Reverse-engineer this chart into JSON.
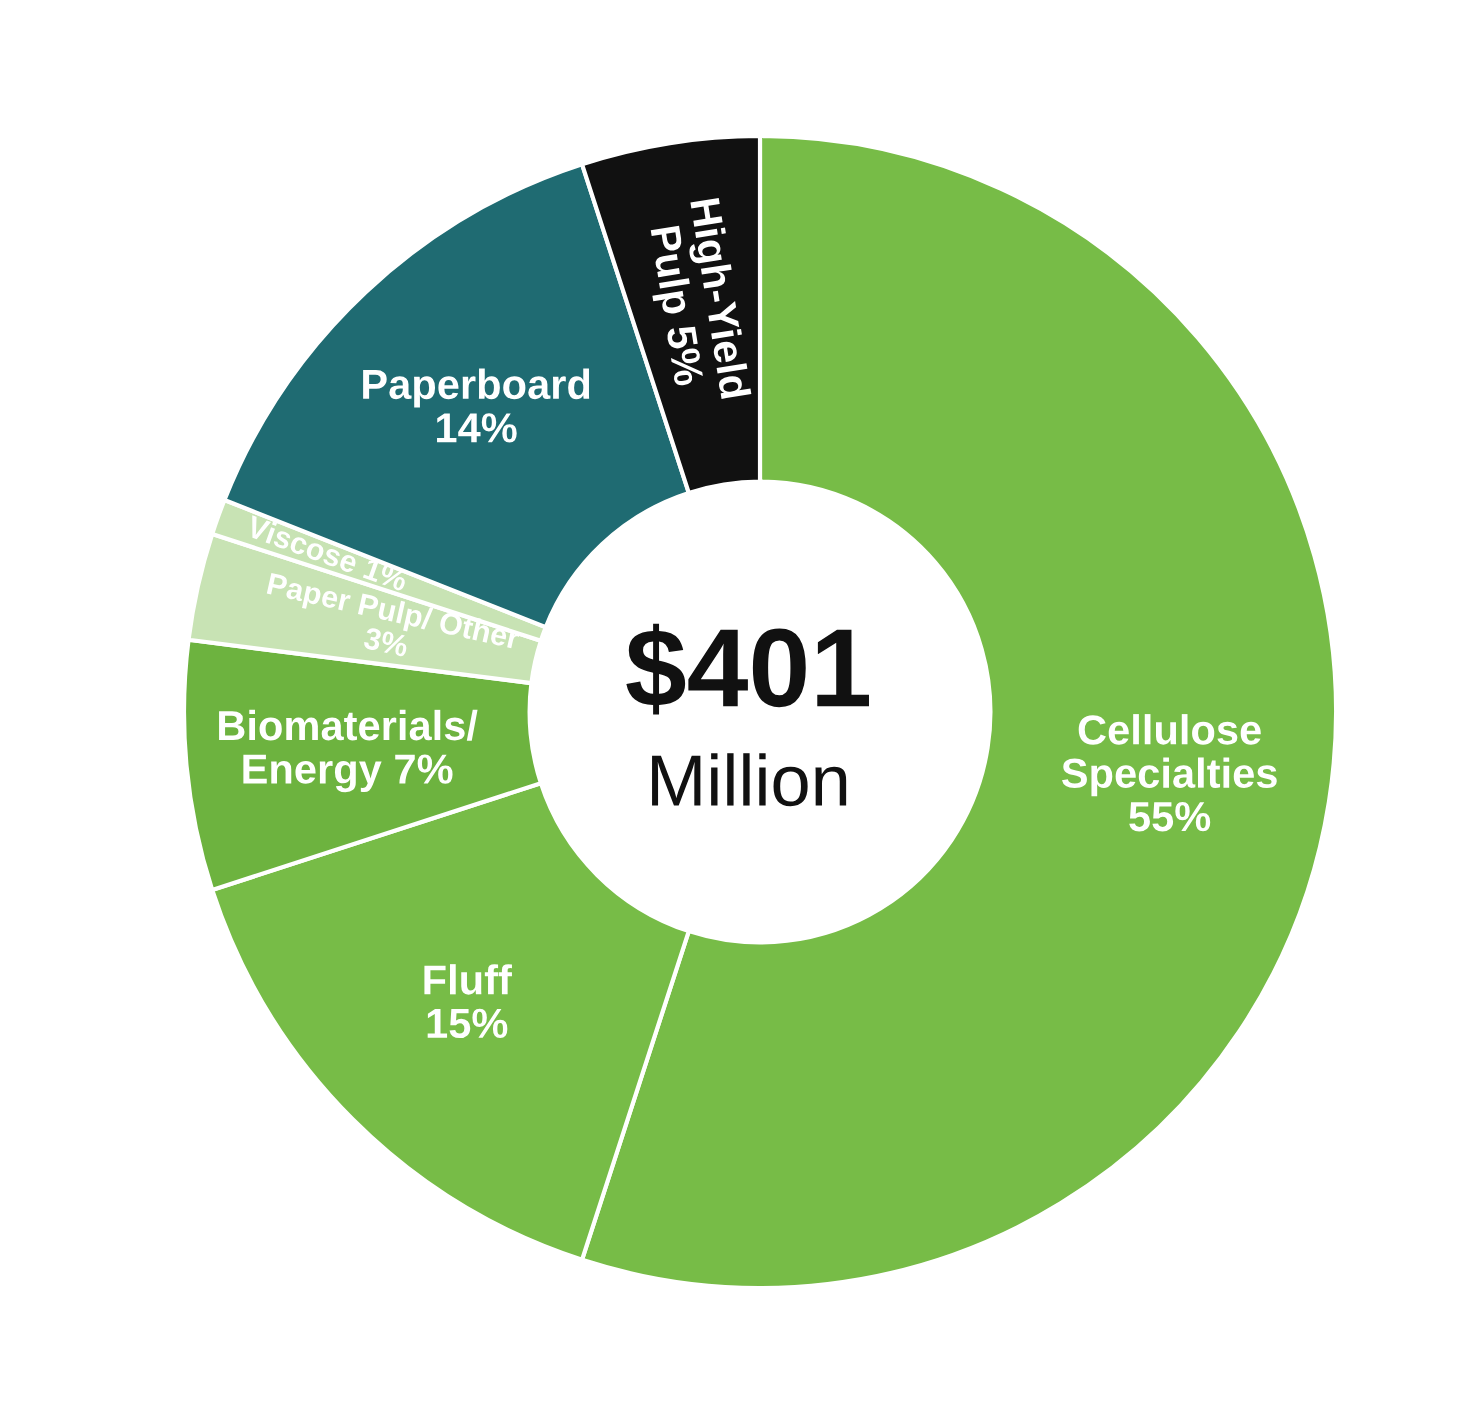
{
  "chart_data": {
    "type": "donut",
    "categories": [
      "Cellulose\nSpecialties",
      "Fluff",
      "Biomaterials/\nEnergy",
      "Paper Pulp/ Other",
      "Viscose",
      "Paperboard",
      "High-Yield\nPulp"
    ],
    "values": [
      55,
      15,
      7,
      3,
      1,
      14,
      5
    ],
    "value_labels": [
      "55%",
      "15%",
      "7%",
      "3%",
      "1%",
      "14%",
      "5%"
    ],
    "colors": [
      "#77bc47",
      "#77bc47",
      "#6db33f",
      "#c8e3b4",
      "#c8e3b4",
      "#1f6b72",
      "#111111"
    ],
    "annotations": [
      "$401",
      "Million"
    ],
    "legend": false
  }
}
